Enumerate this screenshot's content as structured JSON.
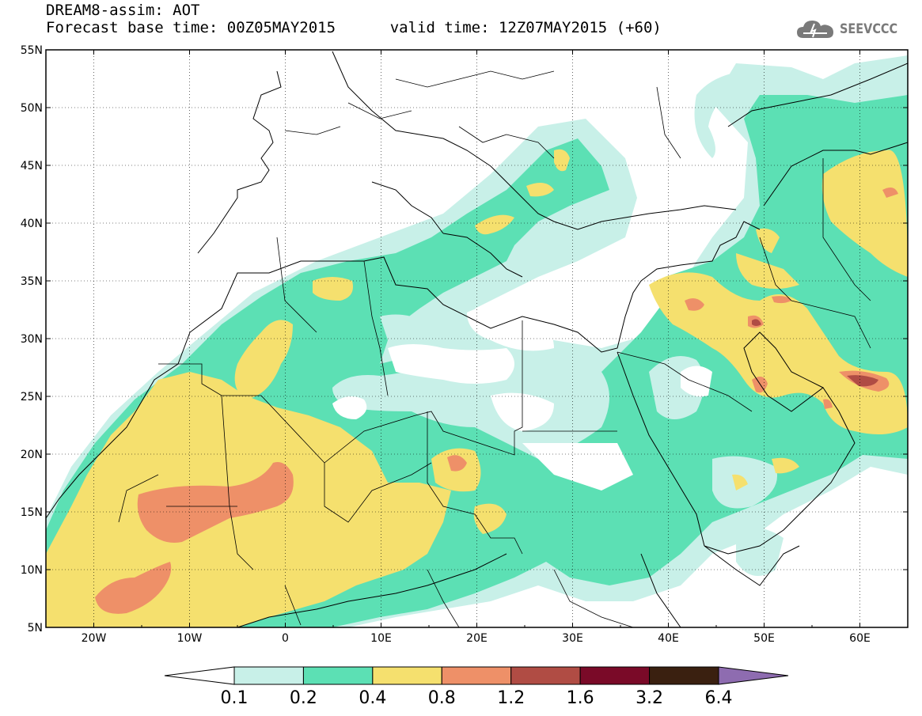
{
  "header": {
    "line1": "DREAM8-assim: AOT",
    "base_time": "Forecast base time: 00Z05MAY2015",
    "valid_time": "valid time: 12Z07MAY2015 (+60)"
  },
  "logo": {
    "text": "SEEVCCC",
    "icon": "cloud-icon",
    "color": "#7a7a7a"
  },
  "map": {
    "lon_range": [
      -25,
      65
    ],
    "lat_range": [
      5,
      55
    ],
    "lat_ticks": [
      "5N",
      "10N",
      "15N",
      "20N",
      "25N",
      "30N",
      "35N",
      "40N",
      "45N",
      "50N",
      "55N"
    ],
    "lon_ticks": [
      "20W",
      "10W",
      "0",
      "10E",
      "20E",
      "30E",
      "40E",
      "50E",
      "60E"
    ],
    "region_colors": {
      "ocean_land_background": "#ffffff",
      "coastline": "#000000"
    }
  },
  "colorbar": {
    "labels": [
      "0.1",
      "0.2",
      "0.4",
      "0.8",
      "1.2",
      "1.6",
      "3.2",
      "6.4"
    ],
    "colors": [
      "#ffffff",
      "#c8f0e8",
      "#5ce0b4",
      "#f5e06e",
      "#ee9068",
      "#b04c44",
      "#7a0a28",
      "#3a2010",
      "#8e6cb0"
    ]
  }
}
